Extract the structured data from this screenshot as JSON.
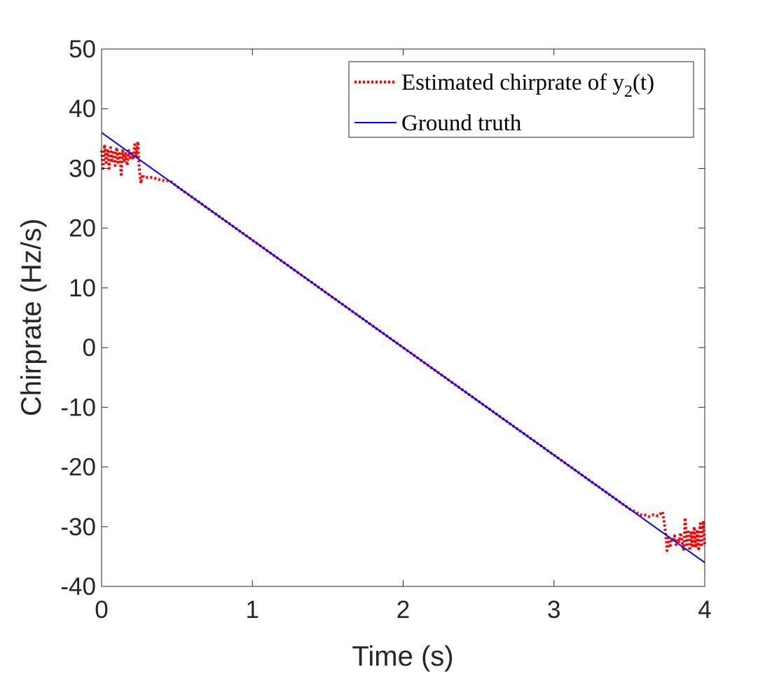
{
  "chart_data": {
    "type": "line",
    "xlabel": "Time (s)",
    "ylabel": "Chirprate (Hz/s)",
    "xlim": [
      0,
      4
    ],
    "ylim": [
      -40,
      50
    ],
    "xticks": [
      "0",
      "1",
      "2",
      "3",
      "4"
    ],
    "yticks": [
      "50",
      "40",
      "30",
      "20",
      "10",
      "0",
      "-10",
      "-20",
      "-30",
      "-40"
    ],
    "grid": false,
    "legend_position": "top-right",
    "series": [
      {
        "name": "Estimated chirprate of y2(t)",
        "legend_text": "Estimated chirprate of y",
        "legend_subscript": "2",
        "legend_suffix": "(t)",
        "style": "dotted",
        "color": "#ff0000",
        "x": [
          0.0,
          0.01,
          0.02,
          0.03,
          0.04,
          0.05,
          0.06,
          0.07,
          0.08,
          0.09,
          0.1,
          0.11,
          0.12,
          0.13,
          0.14,
          0.15,
          0.16,
          0.17,
          0.18,
          0.19,
          0.2,
          0.21,
          0.22,
          0.23,
          0.24,
          0.25,
          0.26,
          0.27,
          0.28,
          0.3,
          0.33,
          0.36,
          0.4,
          0.43,
          0.46,
          0.5,
          1.0,
          1.5,
          2.0,
          2.5,
          3.0,
          3.5,
          3.54,
          3.57,
          3.6,
          3.63,
          3.66,
          3.69,
          3.72,
          3.73,
          3.74,
          3.75,
          3.76,
          3.77,
          3.78,
          3.79,
          3.8,
          3.81,
          3.82,
          3.83,
          3.84,
          3.85,
          3.86,
          3.87,
          3.88,
          3.89,
          3.9,
          3.91,
          3.92,
          3.93,
          3.94,
          3.95,
          3.96,
          3.97,
          3.98,
          3.99,
          4.0
        ],
        "y": [
          33,
          30,
          34,
          31,
          33,
          30,
          33.5,
          31,
          33,
          30.5,
          33.5,
          31,
          32.5,
          29,
          33,
          31,
          32.5,
          30.5,
          33,
          31.5,
          32.5,
          31.5,
          34,
          32,
          34.5,
          30,
          27.5,
          29,
          28.5,
          28.5,
          28.5,
          28.3,
          28,
          28,
          27.8,
          27,
          18,
          9,
          0,
          -9,
          -18,
          -27,
          -27.5,
          -28,
          -28,
          -28.3,
          -28,
          -28.2,
          -27.5,
          -29,
          -31,
          -34,
          -31.5,
          -33.5,
          -32,
          -32.5,
          -31.5,
          -33,
          -32,
          -32.5,
          -31,
          -32.5,
          -34,
          -28.5,
          -33,
          -30.5,
          -34,
          -31,
          -33.5,
          -30,
          -33.5,
          -30.5,
          -34,
          -29.5,
          -33,
          -29,
          -33
        ]
      },
      {
        "name": "Ground truth",
        "style": "solid",
        "color": "#0000ff",
        "x": [
          0,
          4
        ],
        "y": [
          36,
          -36
        ]
      }
    ]
  }
}
